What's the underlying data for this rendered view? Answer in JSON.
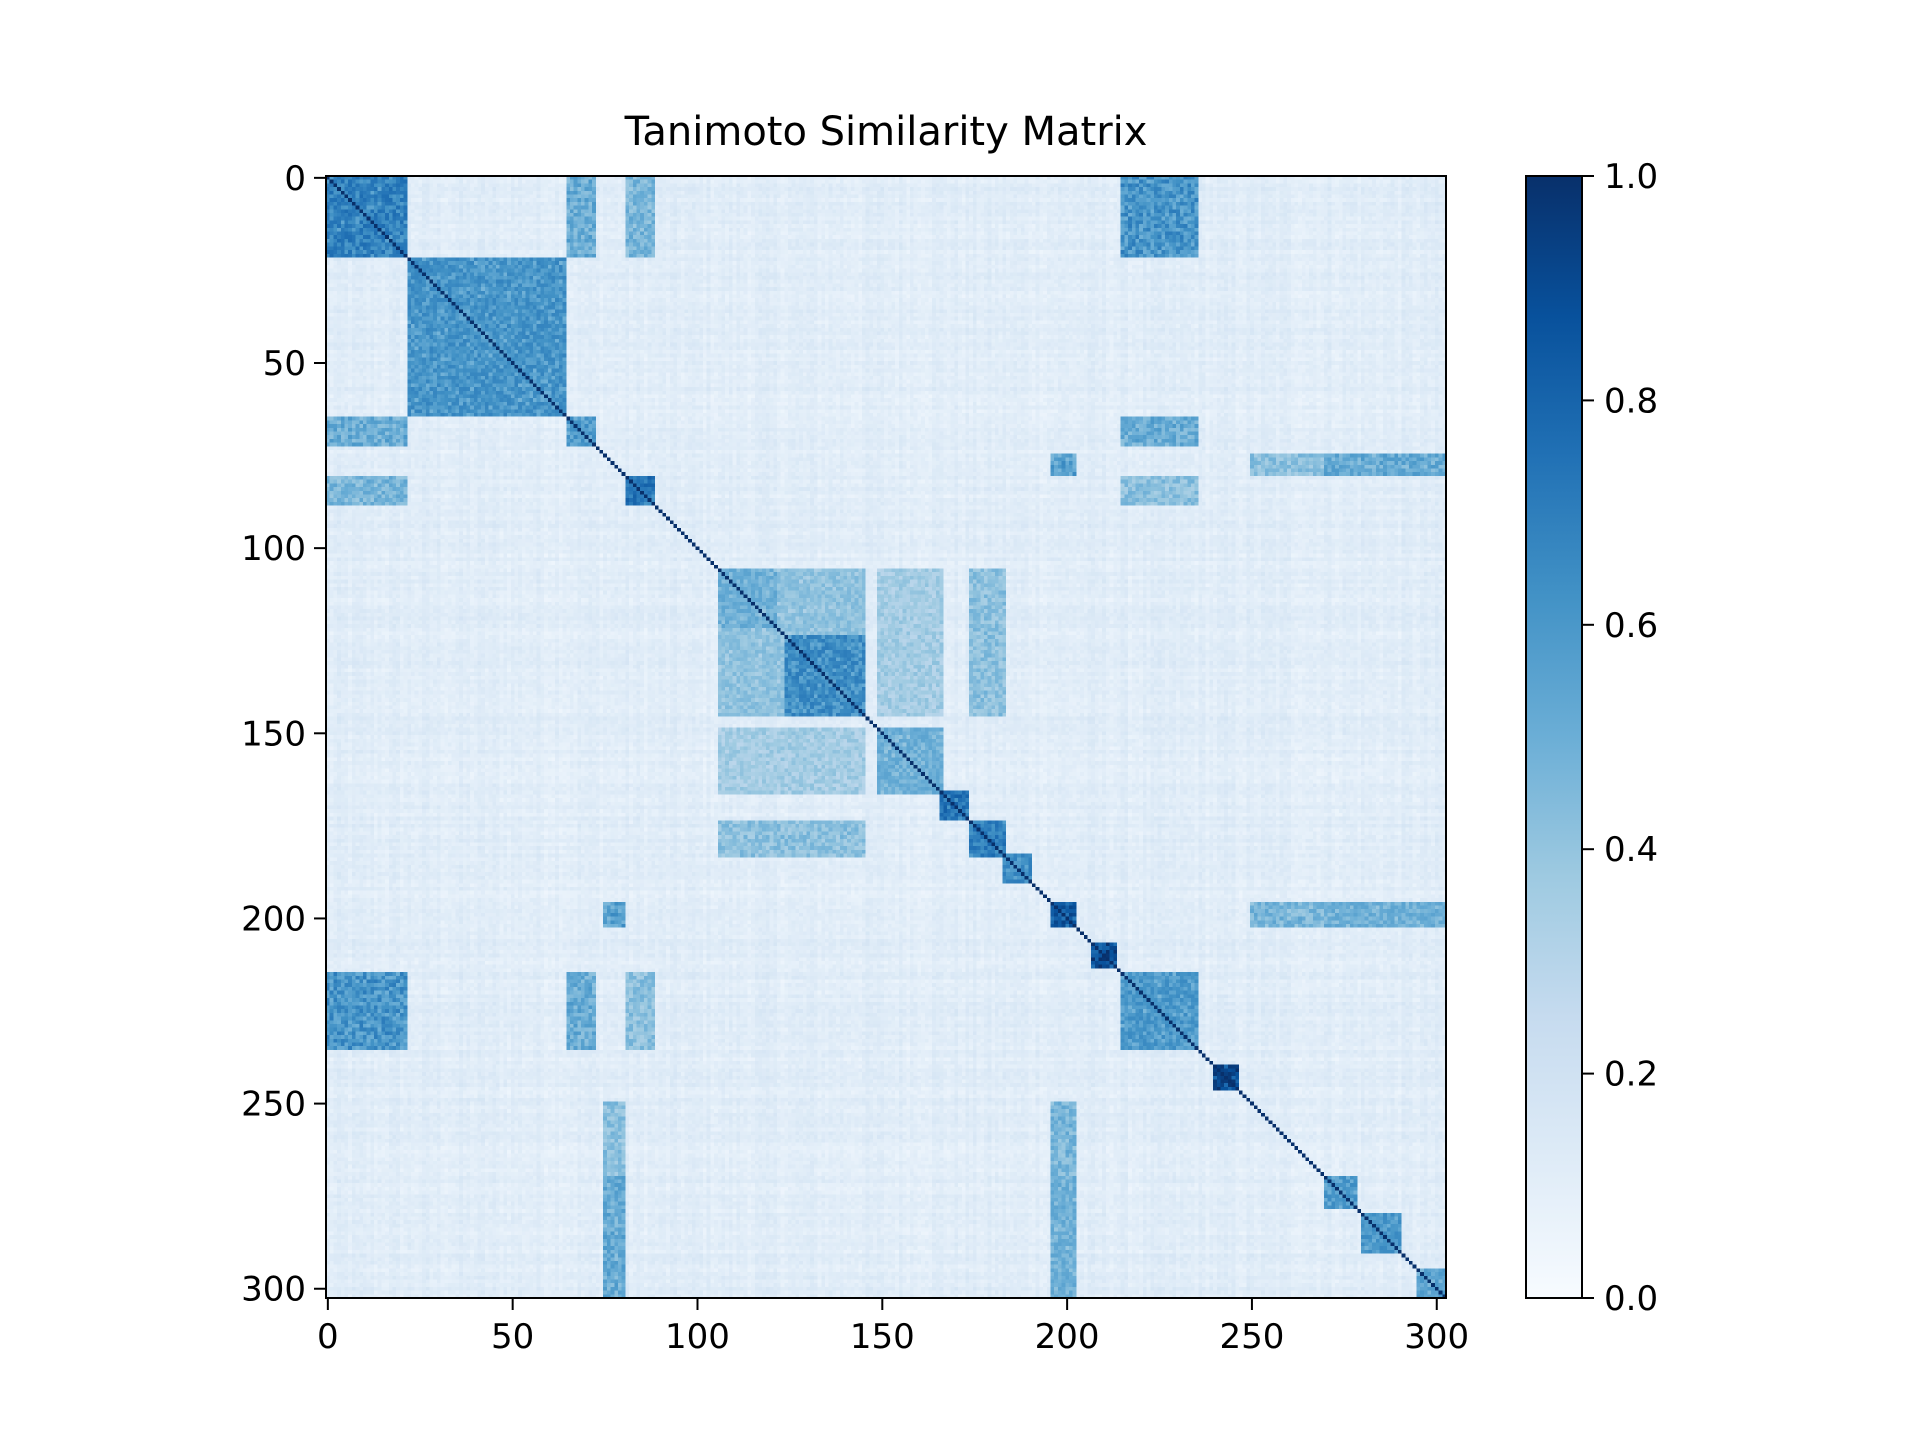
{
  "chart_data": {
    "type": "heatmap",
    "title": "Tanimoto Similarity Matrix",
    "xlabel": "",
    "ylabel": "",
    "n": 303,
    "x_ticks": [
      0,
      50,
      100,
      150,
      200,
      250,
      300
    ],
    "y_ticks": [
      0,
      50,
      100,
      150,
      200,
      250,
      300
    ],
    "colormap": "Blues",
    "colorbar": {
      "range": [
        0.0,
        1.0
      ],
      "ticks": [
        0.0,
        0.2,
        0.4,
        0.6,
        0.8,
        1.0
      ],
      "tick_labels": [
        "0.0",
        "0.2",
        "0.4",
        "0.6",
        "0.8",
        "1.0"
      ]
    },
    "diagonal_value": 1.0,
    "background_similarity": 0.1,
    "clusters": [
      {
        "start": 0,
        "end": 21,
        "value": 0.7
      },
      {
        "start": 22,
        "end": 64,
        "value": 0.62
      },
      {
        "start": 65,
        "end": 72,
        "value": 0.6
      },
      {
        "start": 81,
        "end": 88,
        "value": 0.75
      },
      {
        "start": 106,
        "end": 121,
        "value": 0.5
      },
      {
        "start": 124,
        "end": 145,
        "value": 0.65
      },
      {
        "start": 149,
        "end": 166,
        "value": 0.5
      },
      {
        "start": 166,
        "end": 173,
        "value": 0.75
      },
      {
        "start": 174,
        "end": 183,
        "value": 0.72
      },
      {
        "start": 183,
        "end": 190,
        "value": 0.65
      },
      {
        "start": 196,
        "end": 202,
        "value": 0.85
      },
      {
        "start": 207,
        "end": 213,
        "value": 0.92
      },
      {
        "start": 215,
        "end": 235,
        "value": 0.6
      },
      {
        "start": 240,
        "end": 246,
        "value": 0.92
      },
      {
        "start": 270,
        "end": 278,
        "value": 0.6
      },
      {
        "start": 280,
        "end": 290,
        "value": 0.6
      },
      {
        "start": 295,
        "end": 302,
        "value": 0.55
      }
    ],
    "linked_groups": [
      {
        "rows": [
          0,
          21
        ],
        "cols": [
          65,
          72
        ],
        "value": 0.55
      },
      {
        "rows": [
          0,
          21
        ],
        "cols": [
          215,
          235
        ],
        "value": 0.65
      },
      {
        "rows": [
          65,
          72
        ],
        "cols": [
          215,
          235
        ],
        "value": 0.55
      },
      {
        "rows": [
          81,
          88
        ],
        "cols": [
          0,
          21
        ],
        "value": 0.5
      },
      {
        "rows": [
          81,
          88
        ],
        "cols": [
          215,
          235
        ],
        "value": 0.45
      },
      {
        "rows": [
          106,
          145
        ],
        "cols": [
          106,
          145
        ],
        "value": 0.42
      },
      {
        "rows": [
          106,
          145
        ],
        "cols": [
          174,
          183
        ],
        "value": 0.45
      },
      {
        "rows": [
          149,
          166
        ],
        "cols": [
          106,
          145
        ],
        "value": 0.38
      },
      {
        "rows": [
          196,
          202
        ],
        "cols": [
          75,
          80
        ],
        "value": 0.6
      },
      {
        "rows": [
          196,
          202
        ],
        "cols": [
          270,
          302
        ],
        "value": 0.5
      },
      {
        "rows": [
          75,
          80
        ],
        "cols": [
          270,
          302
        ],
        "value": 0.55
      },
      {
        "rows": [
          250,
          302
        ],
        "cols": [
          196,
          202
        ],
        "value": 0.5
      },
      {
        "rows": [
          250,
          302
        ],
        "cols": [
          75,
          80
        ],
        "value": 0.45
      }
    ]
  }
}
